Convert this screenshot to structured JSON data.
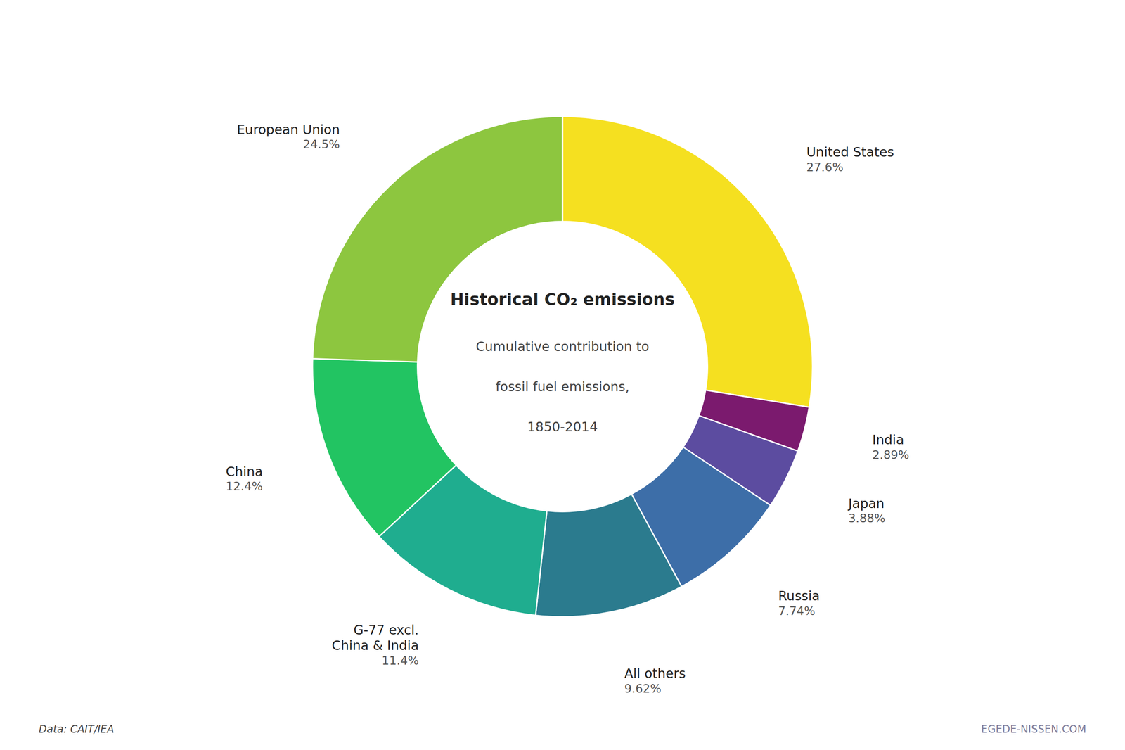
{
  "chart_data": {
    "type": "donut",
    "title": "Historical CO₂ emissions",
    "subtitle": "Cumulative contribution to\nfossil fuel emissions,\n1850-2014",
    "categories": [
      "United States",
      "India",
      "Japan",
      "Russia",
      "All others",
      "G-77 excl.\nChina & India",
      "China",
      "European Union"
    ],
    "values": [
      27.6,
      2.89,
      3.88,
      7.74,
      9.62,
      11.4,
      12.4,
      24.5
    ],
    "value_labels": [
      "27.6%",
      "2.89%",
      "3.88%",
      "7.74%",
      "9.62%",
      "11.4%",
      "12.4%",
      "24.5%"
    ],
    "colors": [
      "#f5e020",
      "#7b1a6e",
      "#5c4ca0",
      "#3d6ea8",
      "#2b7b8e",
      "#1fad8f",
      "#22c462",
      "#8dc63f"
    ],
    "data_labels": true,
    "annotations": [
      "Data: CAIT/IEA",
      "EGEDE-NISSEN.COM"
    ]
  }
}
